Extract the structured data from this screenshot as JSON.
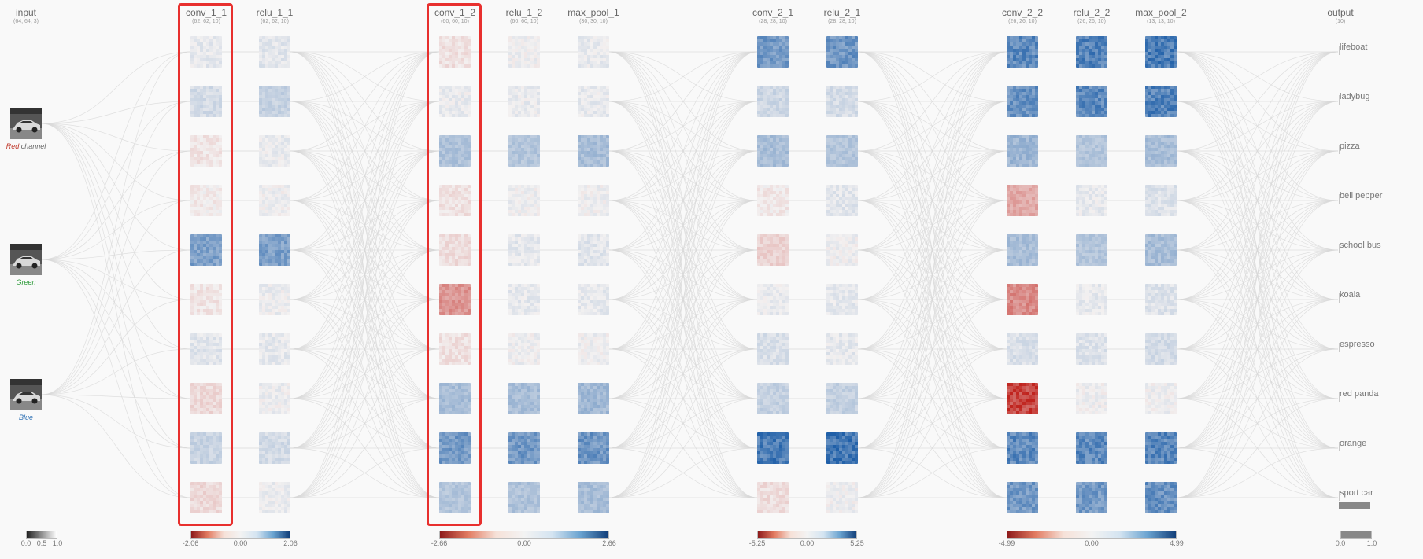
{
  "layers": [
    {
      "id": "input",
      "title": "input",
      "dims": "(64, 64, 3)"
    },
    {
      "id": "conv_1_1",
      "title": "conv_1_1",
      "dims": "(62, 62, 10)"
    },
    {
      "id": "relu_1_1",
      "title": "relu_1_1",
      "dims": "(62, 62, 10)"
    },
    {
      "id": "conv_1_2",
      "title": "conv_1_2",
      "dims": "(60, 60, 10)"
    },
    {
      "id": "relu_1_2",
      "title": "relu_1_2",
      "dims": "(60, 60, 10)"
    },
    {
      "id": "max_pool_1",
      "title": "max_pool_1",
      "dims": "(30, 30, 10)"
    },
    {
      "id": "conv_2_1",
      "title": "conv_2_1",
      "dims": "(28, 28, 10)"
    },
    {
      "id": "relu_2_1",
      "title": "relu_2_1",
      "dims": "(28, 28, 10)"
    },
    {
      "id": "conv_2_2",
      "title": "conv_2_2",
      "dims": "(26, 26, 10)"
    },
    {
      "id": "relu_2_2",
      "title": "relu_2_2",
      "dims": "(26, 26, 10)"
    },
    {
      "id": "max_pool_2",
      "title": "max_pool_2",
      "dims": "(13, 13, 10)"
    },
    {
      "id": "output",
      "title": "output",
      "dims": "(10)"
    }
  ],
  "channels": [
    {
      "name": "Red",
      "suffix": "channel",
      "color": "#c0392b",
      "suffix_color": "#666666"
    },
    {
      "name": "Green",
      "suffix": "",
      "color": "#2e9b3a",
      "suffix_color": "#666666"
    },
    {
      "name": "Blue",
      "suffix": "",
      "color": "#2c6fb3",
      "suffix_color": "#666666"
    }
  ],
  "classes": [
    "lifeboat",
    "ladybug",
    "pizza",
    "bell pepper",
    "school bus",
    "koala",
    "espresso",
    "red panda",
    "orange",
    "sport car"
  ],
  "predicted_probability": {
    "sport car": 0.9
  },
  "activations": {
    "conv_1_1": [
      0.06,
      0.15,
      -0.06,
      -0.03,
      0.55,
      -0.06,
      0.08,
      -0.12,
      0.2,
      -0.12
    ],
    "relu_1_1": [
      0.08,
      0.22,
      0.04,
      0.02,
      0.55,
      0.03,
      0.06,
      0.03,
      0.15,
      0.04
    ],
    "conv_1_2": [
      -0.08,
      0.04,
      0.32,
      -0.08,
      -0.1,
      -0.45,
      -0.08,
      0.35,
      0.6,
      0.3
    ],
    "relu_1_2": [
      0.02,
      0.04,
      0.3,
      0.02,
      0.06,
      0.06,
      0.02,
      0.35,
      0.6,
      0.32
    ],
    "max_pool_1": [
      0.05,
      0.05,
      0.35,
      0.02,
      0.08,
      0.06,
      0.02,
      0.38,
      0.62,
      0.35
    ],
    "conv_2_1": [
      0.6,
      0.18,
      0.35,
      -0.04,
      -0.15,
      0.04,
      0.12,
      0.22,
      0.8,
      -0.1
    ],
    "relu_2_1": [
      0.62,
      0.14,
      0.3,
      0.08,
      0.02,
      0.06,
      0.06,
      0.22,
      0.85,
      0.02
    ],
    "conv_2_2": [
      0.7,
      0.65,
      0.4,
      -0.35,
      0.35,
      -0.5,
      0.12,
      -0.85,
      0.7,
      0.6
    ],
    "relu_2_2": [
      0.75,
      0.7,
      0.3,
      0.05,
      0.3,
      0.06,
      0.1,
      0.02,
      0.7,
      0.6
    ],
    "max_pool_2": [
      0.78,
      0.75,
      0.35,
      0.1,
      0.35,
      0.1,
      0.15,
      0.02,
      0.72,
      0.65
    ]
  },
  "legends": [
    {
      "id": "input",
      "min": "0.0",
      "mid": "0.5",
      "max": "1.0",
      "gradient": "grayscale"
    },
    {
      "id": "block1",
      "min": "-2.06",
      "mid": "0.00",
      "max": "2.06",
      "gradient": "diverging"
    },
    {
      "id": "block2",
      "min": "-2.66",
      "mid": "0.00",
      "max": "2.66",
      "gradient": "diverging"
    },
    {
      "id": "block3",
      "min": "-5.25",
      "mid": "0.00",
      "max": "5.25",
      "gradient": "diverging"
    },
    {
      "id": "block4",
      "min": "-4.99",
      "mid": "0.00",
      "max": "4.99",
      "gradient": "diverging"
    },
    {
      "id": "output",
      "min": "0.0",
      "max": "1.0",
      "gradient": "gray"
    }
  ],
  "highlighted_layers": [
    "conv_1_1",
    "conv_1_2"
  ],
  "colors": {
    "positive": "#1f5fa8",
    "negative": "#c0241e",
    "neutral": "#f3f1f1",
    "highlight": "#e8302e",
    "links": "#d8d8d8"
  }
}
